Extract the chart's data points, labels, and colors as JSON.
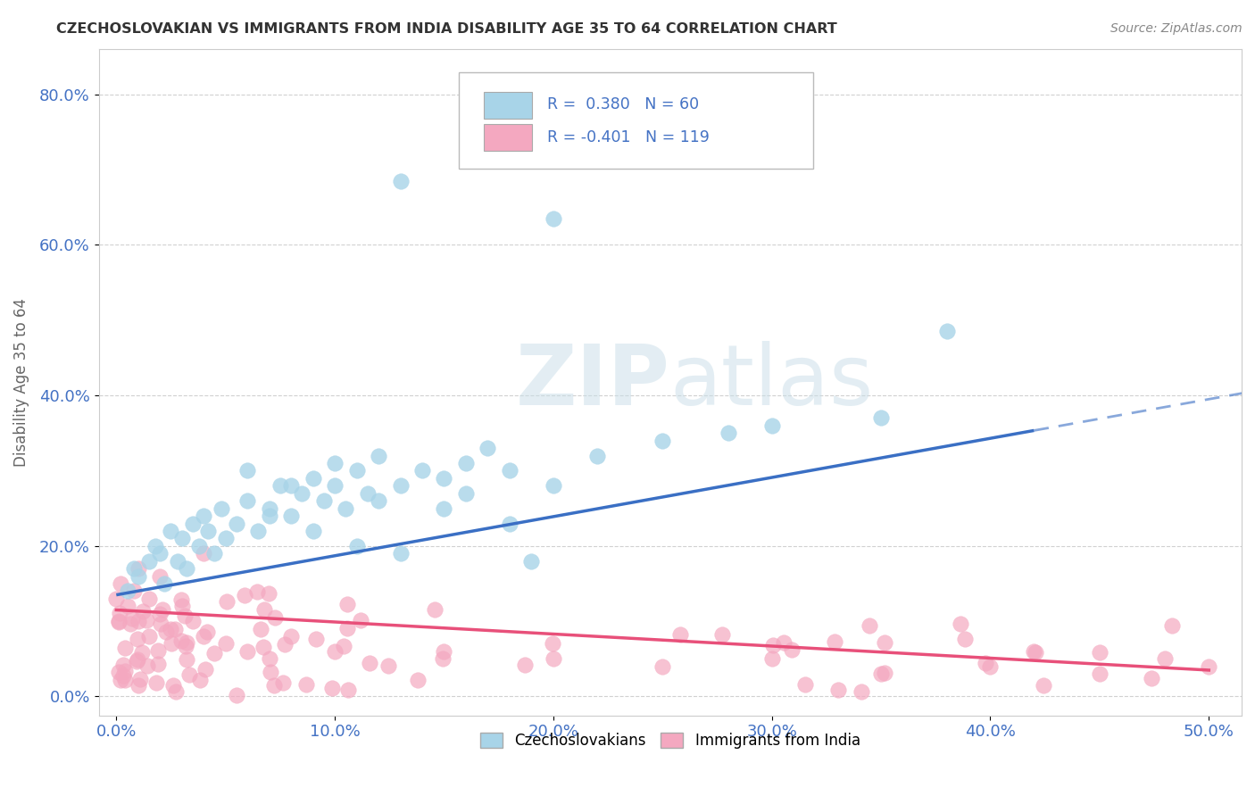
{
  "title": "CZECHOSLOVAKIAN VS IMMIGRANTS FROM INDIA DISABILITY AGE 35 TO 64 CORRELATION CHART",
  "source": "Source: ZipAtlas.com",
  "ylabel_label": "Disability Age 35 to 64",
  "xlim": [
    -0.008,
    0.515
  ],
  "ylim": [
    -0.025,
    0.86
  ],
  "legend_blue_label": "Czechoslovakians",
  "legend_pink_label": "Immigrants from India",
  "R_blue": 0.38,
  "N_blue": 60,
  "R_pink": -0.401,
  "N_pink": 119,
  "blue_scatter_color": "#a8d4e8",
  "pink_scatter_color": "#f4a8c0",
  "blue_line_color": "#3a6fc4",
  "pink_line_color": "#e8507a",
  "title_color": "#333333",
  "source_color": "#888888",
  "tick_color": "#4472c4",
  "ylabel_color": "#666666",
  "grid_color": "#cccccc",
  "watermark_color": "#d8e8f0",
  "blue_line_start_x": 0.0,
  "blue_line_start_y": 0.135,
  "blue_line_end_x": 0.5,
  "blue_line_end_y": 0.395,
  "pink_line_start_x": 0.0,
  "pink_line_start_y": 0.115,
  "pink_line_end_x": 0.5,
  "pink_line_end_y": 0.035
}
